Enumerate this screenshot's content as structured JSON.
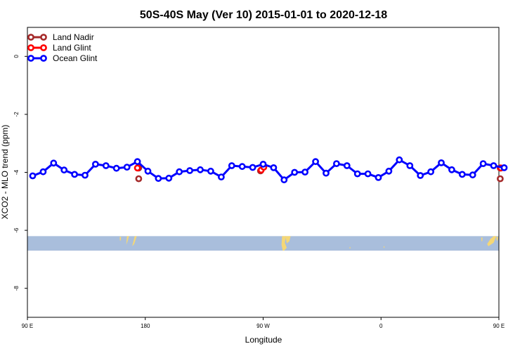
{
  "chart_data": {
    "type": "line",
    "title": "50S-40S May (Ver 10)   2015-01-01 to 2020-12-18",
    "xlabel": "Longitude",
    "ylabel": "XCO2 - MLO trend (ppm)",
    "xlim": [
      90,
      450
    ],
    "ylim": [
      -9,
      1
    ],
    "x_ticks": [
      {
        "value": 90,
        "label": "90 E"
      },
      {
        "value": 180,
        "label": "180"
      },
      {
        "value": 270,
        "label": "90 W"
      },
      {
        "value": 360,
        "label": "0"
      },
      {
        "value": 450,
        "label": "90 E"
      },
      {
        "value": 540,
        "label": "180"
      }
    ],
    "y_ticks": [
      {
        "value": 0,
        "label": "0"
      },
      {
        "value": -2,
        "label": "-2"
      },
      {
        "value": -4,
        "label": "-4"
      },
      {
        "value": -6,
        "label": "-6"
      },
      {
        "value": -8,
        "label": "-8"
      }
    ],
    "legend_position": "top-left",
    "series": [
      {
        "name": "Land Nadir",
        "color": "#A52A2A",
        "show_line": false,
        "points": [
          [
            175,
            -3.85
          ],
          [
            175,
            -4.22
          ],
          [
            268,
            -3.95
          ],
          [
            451,
            -3.85
          ],
          [
            451,
            -4.22
          ]
        ]
      },
      {
        "name": "Land Glint",
        "color": "#FF0000",
        "show_line": false,
        "points": [
          [
            174,
            -3.85
          ],
          [
            268.5,
            -3.92
          ],
          [
            270.5,
            -3.82
          ],
          [
            451.5,
            -3.85
          ]
        ]
      },
      {
        "name": "Ocean Glint",
        "color": "#0000FF",
        "show_line": true,
        "points": [
          [
            94,
            -4.12
          ],
          [
            102,
            -3.98
          ],
          [
            110,
            -3.68
          ],
          [
            118,
            -3.92
          ],
          [
            126,
            -4.07
          ],
          [
            134,
            -4.1
          ],
          [
            142,
            -3.72
          ],
          [
            150,
            -3.77
          ],
          [
            158,
            -3.86
          ],
          [
            166,
            -3.82
          ],
          [
            174,
            -3.63
          ],
          [
            182,
            -3.96
          ],
          [
            190,
            -4.21
          ],
          [
            198,
            -4.2
          ],
          [
            206,
            -3.98
          ],
          [
            214,
            -3.94
          ],
          [
            222,
            -3.91
          ],
          [
            230,
            -3.96
          ],
          [
            238,
            -4.16
          ],
          [
            246,
            -3.77
          ],
          [
            254,
            -3.8
          ],
          [
            262,
            -3.83
          ],
          [
            270,
            -3.72
          ],
          [
            278,
            -3.84
          ],
          [
            286,
            -4.26
          ],
          [
            294,
            -4.0
          ],
          [
            302,
            -3.99
          ],
          [
            310,
            -3.63
          ],
          [
            318,
            -4.03
          ],
          [
            326,
            -3.7
          ],
          [
            334,
            -3.77
          ],
          [
            342,
            -4.05
          ],
          [
            350,
            -4.05
          ],
          [
            358,
            -4.18
          ],
          [
            366,
            -3.96
          ],
          [
            374,
            -3.57
          ],
          [
            382,
            -3.77
          ],
          [
            390,
            -4.11
          ],
          [
            398,
            -3.98
          ],
          [
            406,
            -3.67
          ],
          [
            414,
            -3.91
          ],
          [
            422,
            -4.07
          ],
          [
            430,
            -4.09
          ],
          [
            438,
            -3.7
          ],
          [
            446,
            -3.77
          ],
          [
            454,
            -3.84
          ]
        ]
      }
    ],
    "land_strip": {
      "y_top": -6.2,
      "y_bottom": -6.7,
      "ocean_color": "#A9BEDC",
      "land_color": "#F5D776"
    }
  }
}
